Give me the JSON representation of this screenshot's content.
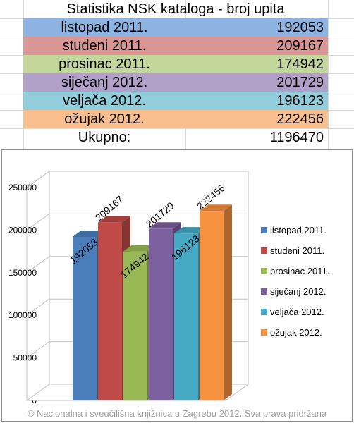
{
  "table": {
    "title": "Statistika NSK kataloga - broj upita",
    "rows": [
      {
        "month": "listopad 2011.",
        "value": "192053",
        "color": "#8db3e2"
      },
      {
        "month": "studeni 2011.",
        "value": "209167",
        "color": "#da9694"
      },
      {
        "month": "prosinac 2011.",
        "value": "174942",
        "color": "#c4d79b"
      },
      {
        "month": "siječanj 2012.",
        "value": "201729",
        "color": "#b1a0c7"
      },
      {
        "month": "veljača 2012.",
        "value": "196123",
        "color": "#92cddc"
      },
      {
        "month": "ožujak 2012.",
        "value": "222456",
        "color": "#fabf8f"
      }
    ],
    "total_label": "Ukupno:",
    "total_value": "1196470"
  },
  "chart_data": {
    "type": "bar",
    "categories": [
      "listopad 2011.",
      "studeni 2011.",
      "prosinac 2011.",
      "siječanj 2012.",
      "veljača 2012.",
      "ožujak 2012."
    ],
    "values": [
      192053,
      209167,
      174942,
      201729,
      196123,
      222456
    ],
    "colors": [
      "#4a7ebb",
      "#be4b48",
      "#98b954",
      "#7d60a0",
      "#46aac5",
      "#f69240"
    ],
    "yticks": [
      "0",
      "50000",
      "100000",
      "150000",
      "200000",
      "250000"
    ],
    "ylim": [
      0,
      250000
    ],
    "grid": true,
    "legend": "right",
    "three_d": true
  },
  "copyright": "© Nacionalna i sveučilišna knjižnica u Zagrebu 2012. Sva prava pridržana"
}
